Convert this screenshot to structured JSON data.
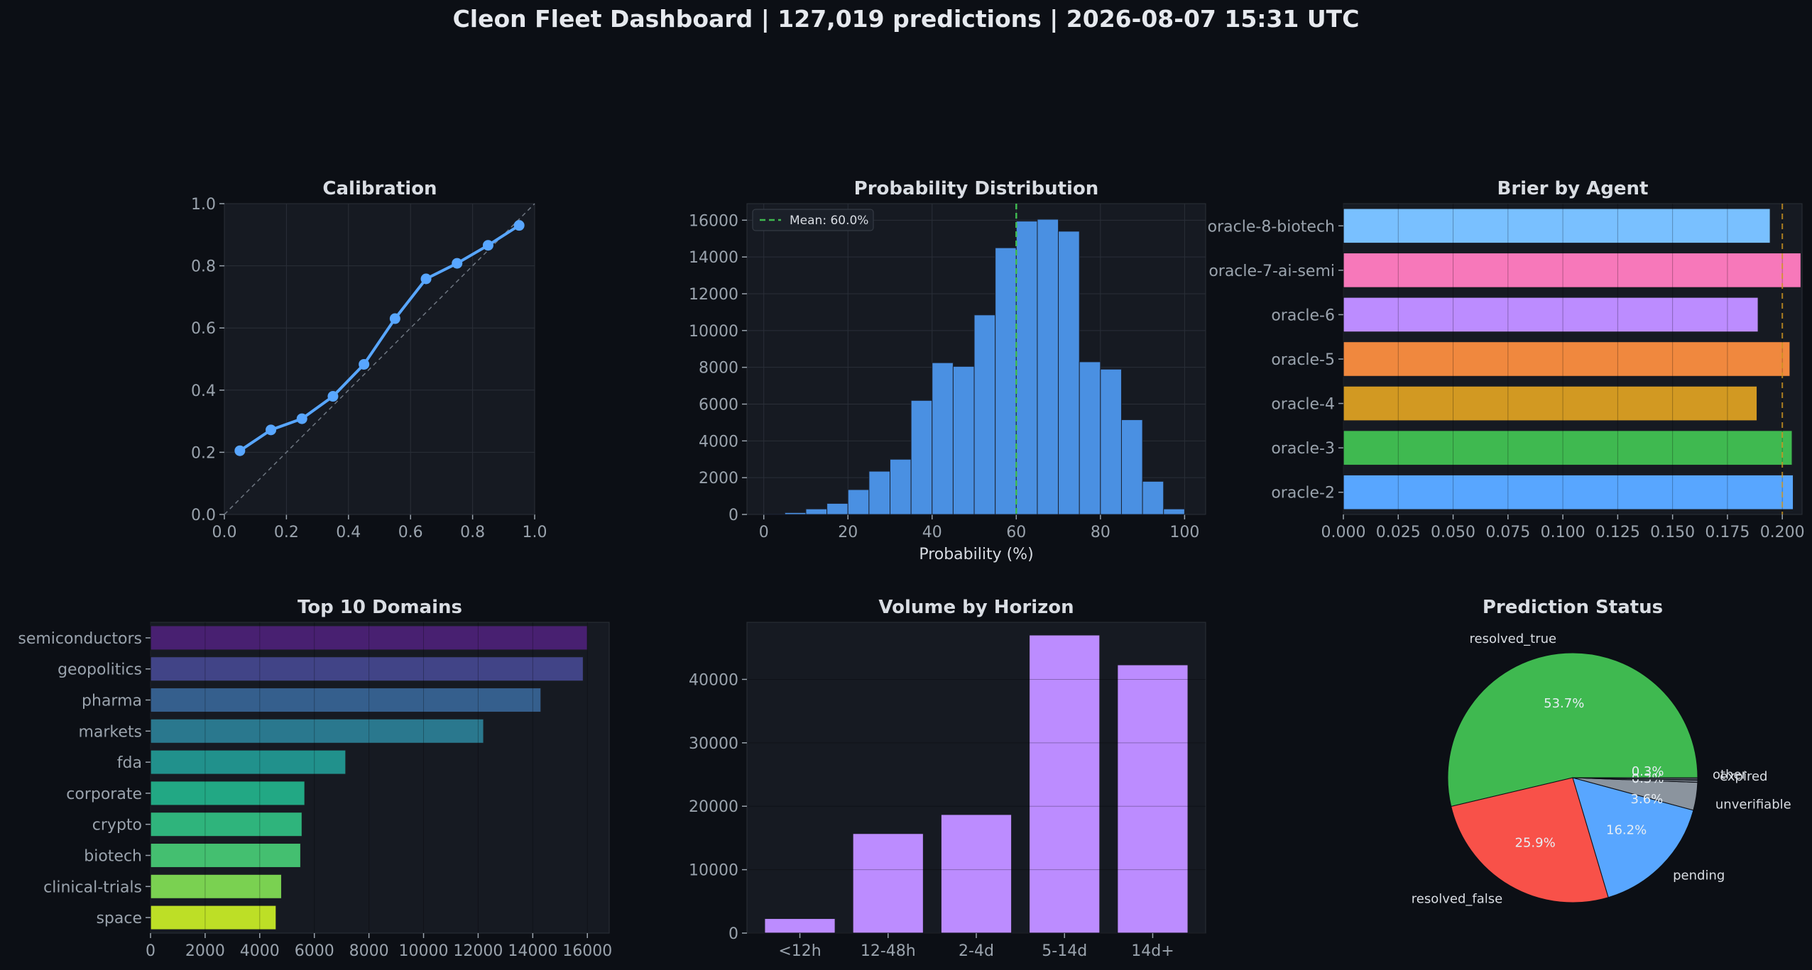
{
  "header": {
    "title": "Cleon Fleet Dashboard  |  127,019 predictions  |  2026-08-07 15:31 UTC"
  },
  "colors": {
    "page_bg": "#0c0f15",
    "panel_bg": "#161a22",
    "text": "#d9dde3",
    "tick": "#9aa3ad",
    "grid": "#2a2f38",
    "line_blue": "#58a6ff",
    "hist_blue": "#4a90e2",
    "mean_green": "#3fb950",
    "threshold_orange": "#d29922",
    "purple": "#bc8cff"
  },
  "chart_data": [
    {
      "id": "calibration",
      "type": "line",
      "title": "Calibration",
      "xlabel": "",
      "ylabel": "",
      "xlim": [
        0,
        1
      ],
      "ylim": [
        0,
        1
      ],
      "xticks": [
        "0.0",
        "0.2",
        "0.4",
        "0.6",
        "0.8",
        "1.0"
      ],
      "yticks": [
        "0.0",
        "0.2",
        "0.4",
        "0.6",
        "0.8",
        "1.0"
      ],
      "diagonal_reference": true,
      "grid": true,
      "x": [
        0.05,
        0.15,
        0.25,
        0.35,
        0.45,
        0.55,
        0.65,
        0.75,
        0.85,
        0.95
      ],
      "y": [
        0.205,
        0.272,
        0.308,
        0.38,
        0.483,
        0.63,
        0.758,
        0.808,
        0.866,
        0.93
      ]
    },
    {
      "id": "probability_distribution",
      "type": "bar",
      "subtype": "histogram",
      "title": "Probability Distribution",
      "xlabel": "Probability (%)",
      "ylabel": "",
      "xlim": [
        -4,
        105
      ],
      "ylim": [
        0,
        16900
      ],
      "xticks": [
        "0",
        "20",
        "40",
        "60",
        "80",
        "100"
      ],
      "yticks": [
        "0",
        "2000",
        "4000",
        "6000",
        "8000",
        "10000",
        "12000",
        "14000",
        "16000"
      ],
      "bin_width": 5,
      "bin_starts": [
        0,
        5,
        10,
        15,
        20,
        25,
        30,
        35,
        40,
        45,
        50,
        55,
        60,
        65,
        70,
        75,
        80,
        85,
        90,
        95
      ],
      "values": [
        20,
        100,
        300,
        600,
        1350,
        2350,
        3000,
        6200,
        8250,
        8050,
        10850,
        14500,
        15950,
        16050,
        15400,
        8300,
        7900,
        5150,
        1800,
        300
      ],
      "mean_line": 60,
      "legend": {
        "label": "Mean: 60.0%",
        "position": "top-left"
      }
    },
    {
      "id": "brier_by_agent",
      "type": "bar",
      "orientation": "horizontal",
      "title": "Brier by Agent",
      "xlim": [
        0,
        0.209
      ],
      "xticks": [
        "0.000",
        "0.025",
        "0.050",
        "0.075",
        "0.100",
        "0.125",
        "0.150",
        "0.175",
        "0.200"
      ],
      "categories": [
        "oracle-8-biotech",
        "oracle-7-ai-semi",
        "oracle-6",
        "oracle-5",
        "oracle-4",
        "oracle-3",
        "oracle-2"
      ],
      "values": [
        0.1945,
        0.2085,
        0.189,
        0.2035,
        0.1885,
        0.2045,
        0.205
      ],
      "bar_colors": [
        "#79c0ff",
        "#f778ba",
        "#bc8cff",
        "#f0883e",
        "#d29922",
        "#3fb950",
        "#58a6ff"
      ],
      "threshold": 0.2
    },
    {
      "id": "top_domains",
      "type": "bar",
      "orientation": "horizontal",
      "title": "Top 10 Domains",
      "xlim": [
        0,
        16800
      ],
      "xticks": [
        "0",
        "2000",
        "4000",
        "6000",
        "8000",
        "10000",
        "12000",
        "14000",
        "16000"
      ],
      "categories": [
        "semiconductors",
        "geopolitics",
        "pharma",
        "markets",
        "fda",
        "corporate",
        "crypto",
        "biotech",
        "clinical-trials",
        "space"
      ],
      "values": [
        16000,
        15850,
        14300,
        12200,
        7150,
        5650,
        5550,
        5500,
        4800,
        4600
      ],
      "bar_colors": [
        "#482071",
        "#414487",
        "#355f8d",
        "#2a788e",
        "#21918c",
        "#22a884",
        "#2fb47c",
        "#44bf70",
        "#7ad151",
        "#bddf26"
      ]
    },
    {
      "id": "volume_by_horizon",
      "type": "bar",
      "title": "Volume by Horizon",
      "ylim": [
        0,
        49000
      ],
      "yticks": [
        "0",
        "10000",
        "20000",
        "30000",
        "40000"
      ],
      "categories": [
        "<12h",
        "12-48h",
        "2-4d",
        "5-14d",
        "14d+"
      ],
      "values": [
        2300,
        15700,
        18700,
        47000,
        42300
      ]
    },
    {
      "id": "prediction_status",
      "type": "pie",
      "title": "Prediction Status",
      "labels": [
        "resolved_true",
        "resolved_false",
        "pending",
        "unverifiable",
        "other",
        "expired"
      ],
      "values": [
        53.7,
        25.9,
        16.2,
        3.6,
        0.3,
        0.3
      ],
      "pct_labels": [
        "53.7%",
        "25.9%",
        "16.2%",
        "3.6%",
        "0.3%",
        "0.3%"
      ],
      "colors": [
        "#3fb950",
        "#f85149",
        "#58a6ff",
        "#8b949e",
        "#6e7681",
        "#484f58"
      ]
    }
  ]
}
